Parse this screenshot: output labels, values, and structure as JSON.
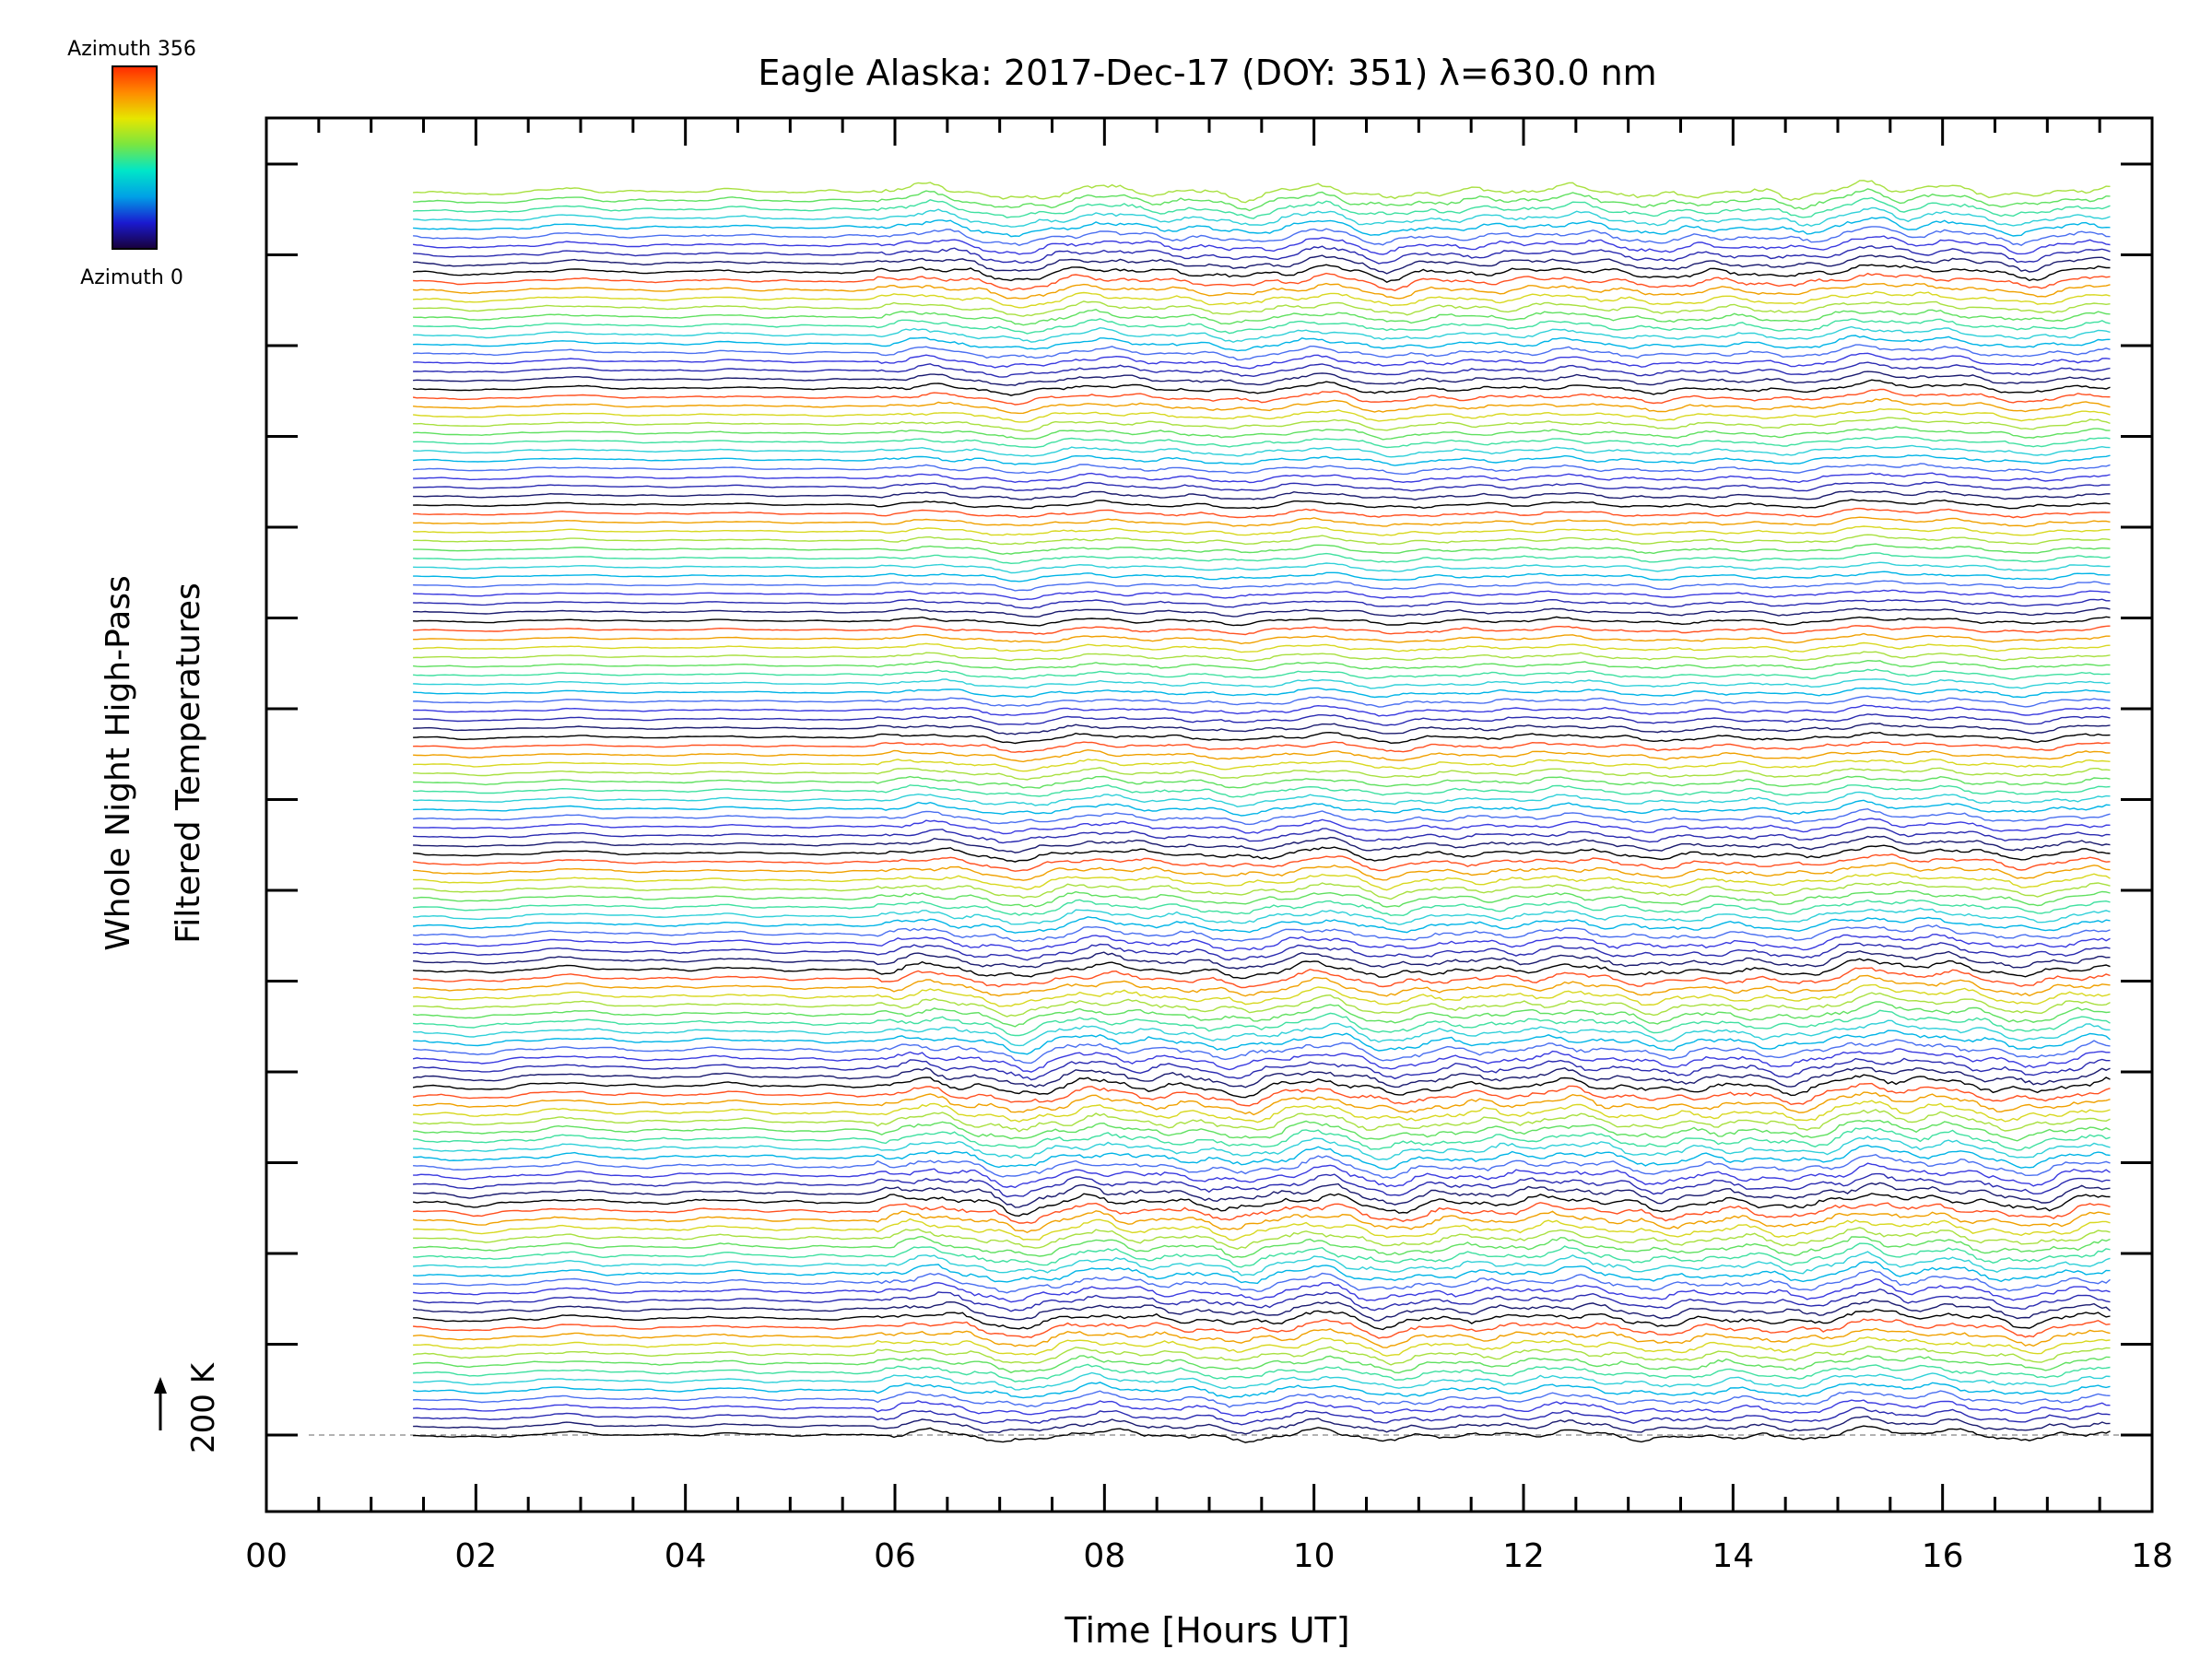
{
  "chart_data": {
    "type": "line",
    "title": "Eagle Alaska: 2017-Dec-17 (DOY: 351) λ=630.0 nm",
    "xlabel": "Time [Hours UT]",
    "ylabel_line1": "Whole Night High-Pass",
    "ylabel_line2": "Filtered Temperatures",
    "scale_label": "200 K",
    "x_ticks": [
      "00",
      "02",
      "04",
      "06",
      "08",
      "10",
      "12",
      "14",
      "16",
      "18"
    ],
    "xlim": [
      0,
      18
    ],
    "x_start": 1.4,
    "x_end": 17.6,
    "colorbar": {
      "top_label": "Azimuth 356",
      "bottom_label": "Azimuth 0",
      "colormap": [
        "#18003a",
        "#1a1ad0",
        "#00a0e6",
        "#00e6c8",
        "#7ae640",
        "#e6e600",
        "#ff8a00",
        "#ff2a00"
      ]
    },
    "series_count": 140,
    "azimuth_range": [
      0,
      356
    ],
    "trace_colors": [
      "#000000",
      "#1a1a6e",
      "#2a2ab0",
      "#3a3ae0",
      "#4a6ff0",
      "#00b4e6",
      "#30d0d8",
      "#40e0a0",
      "#60e060",
      "#a8e040",
      "#d8d820",
      "#f0a000",
      "#ff5020"
    ],
    "signal_features": [
      {
        "t": 2.0,
        "amp": -0.5
      },
      {
        "t": 2.9,
        "amp": 0.6
      },
      {
        "t": 4.4,
        "amp": 0.4
      },
      {
        "t": 6.3,
        "amp": 1.0
      },
      {
        "t": 7.2,
        "amp": -1.5
      },
      {
        "t": 7.9,
        "amp": 0.9
      },
      {
        "t": 9.3,
        "amp": -1.1
      },
      {
        "t": 10.1,
        "amp": 1.2
      },
      {
        "t": 10.7,
        "amp": -1.3
      },
      {
        "t": 12.4,
        "amp": 0.8
      },
      {
        "t": 13.3,
        "amp": -0.9
      },
      {
        "t": 14.6,
        "amp": -0.8
      },
      {
        "t": 15.3,
        "amp": 1.6
      },
      {
        "t": 16.0,
        "amp": 0.9
      },
      {
        "t": 16.8,
        "amp": -1.0
      },
      {
        "t": 17.5,
        "amp": 0.8
      }
    ]
  }
}
